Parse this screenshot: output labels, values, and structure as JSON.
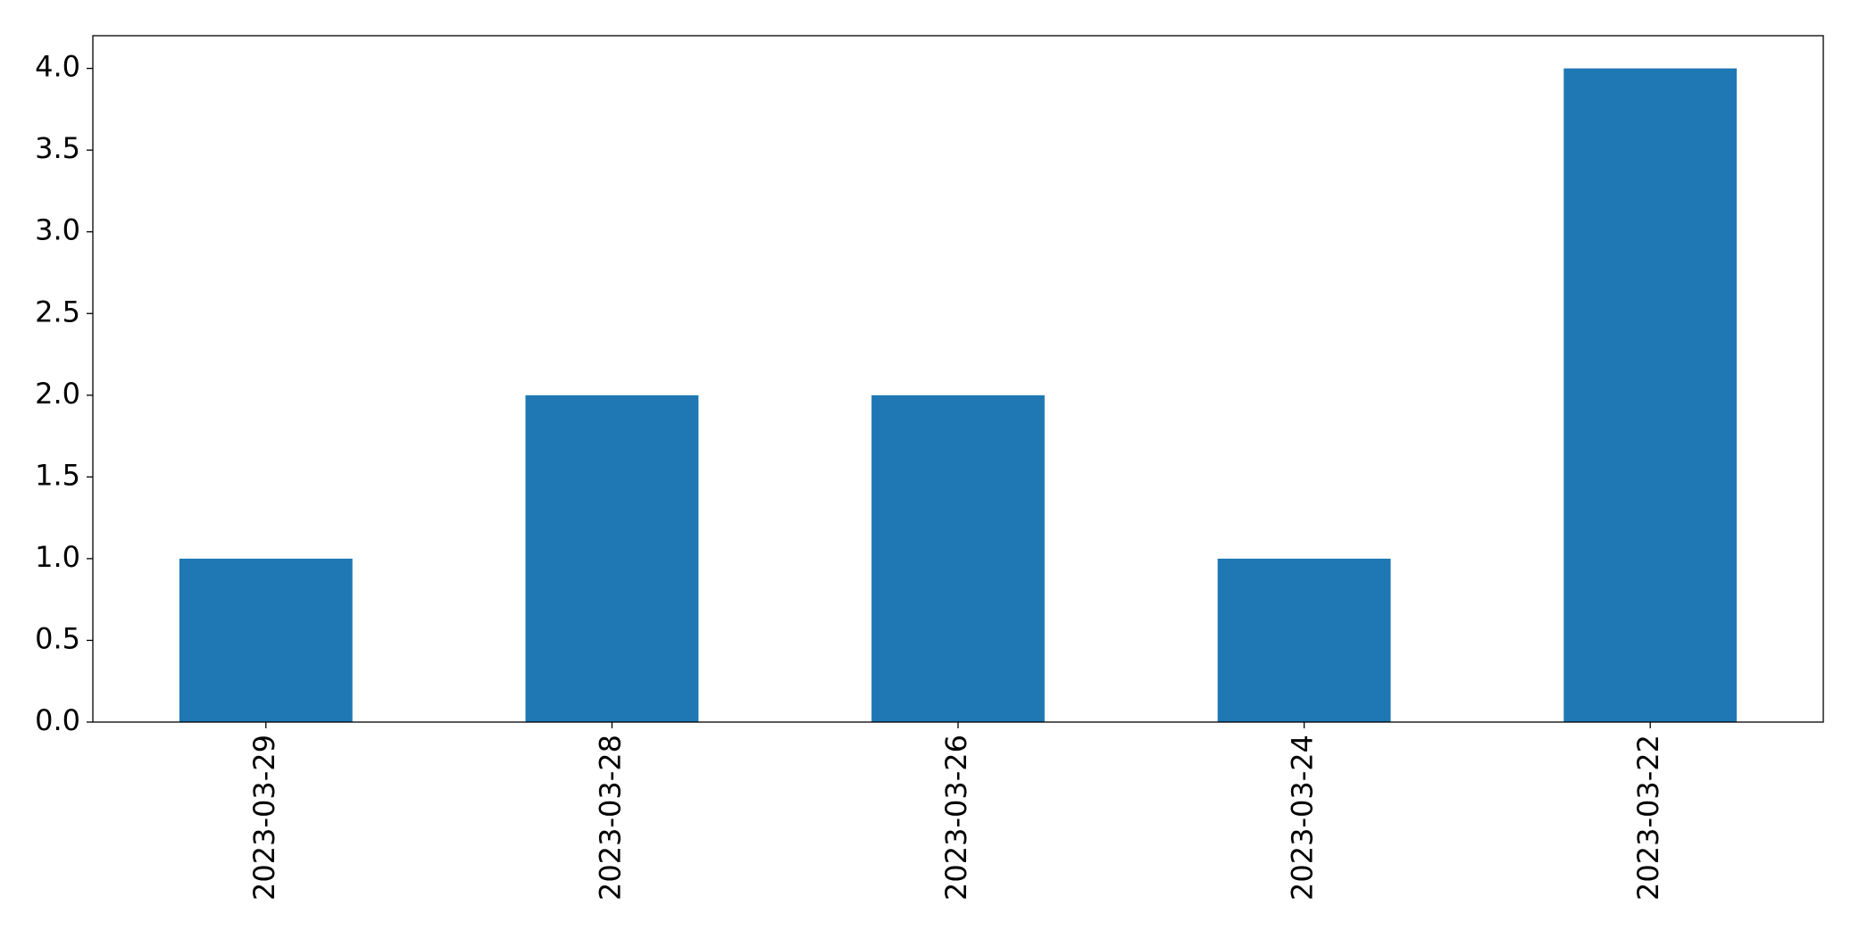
{
  "chart_data": {
    "type": "bar",
    "categories": [
      "2023-03-29",
      "2023-03-28",
      "2023-03-26",
      "2023-03-24",
      "2023-03-22"
    ],
    "values": [
      1,
      2,
      2,
      1,
      4
    ],
    "color": "#1f77b4",
    "ylim": [
      0,
      4.2
    ],
    "yticks": [
      {
        "value": 0,
        "label": "0.0"
      },
      0.5,
      {
        "value": 1,
        "label": "1.0"
      },
      1.5,
      {
        "value": 2,
        "label": "2.0"
      },
      2.5,
      {
        "value": 3,
        "label": "3.0"
      },
      3.5,
      {
        "value": 4,
        "label": "4.0"
      }
    ],
    "grid": false
  }
}
